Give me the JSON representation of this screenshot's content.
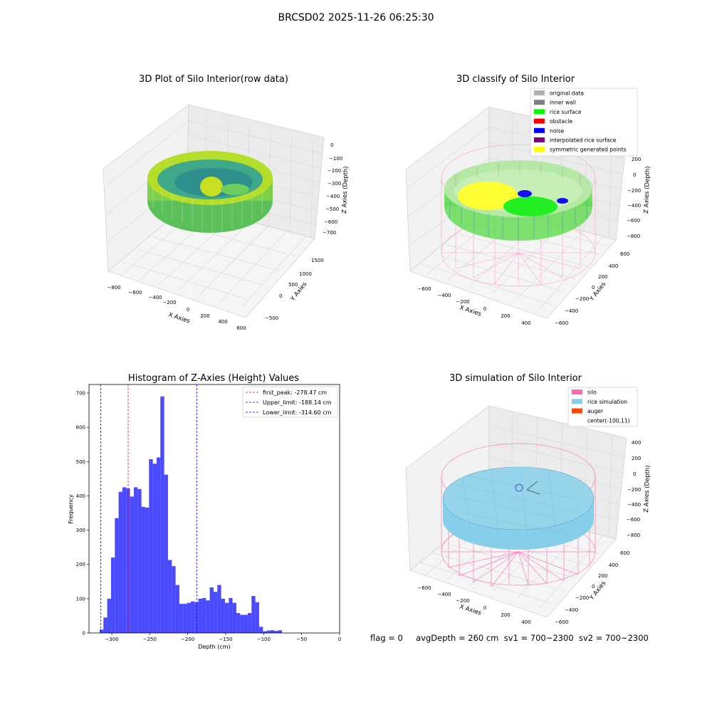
{
  "figure": {
    "suptitle": "BRCSD02 2025-11-26 06:25:30",
    "status_text": "flag = 0     avgDepth = 260 cm  sv1 = 700~2300  sv2 = 700~2300"
  },
  "panel_raw": {
    "title": "3D Plot of Silo Interior(row data)",
    "xlabel": "X Axies",
    "ylabel": "Y Axies",
    "zlabel": "Z Axies (Depth)",
    "xticks": [
      "−800",
      "−600",
      "−400",
      "−200",
      "0",
      "200",
      "400",
      "600"
    ],
    "yticks": [
      "−500",
      "0",
      "500",
      "1000",
      "1500"
    ],
    "zticks": [
      "0",
      "−100",
      "−200",
      "−300",
      "−400",
      "−500",
      "−600",
      "−700"
    ]
  },
  "panel_classify": {
    "title": "3D classify of Silo Interior",
    "xlabel": "X Axies",
    "ylabel": "Y Axies",
    "zlabel": "Z Axies (Depth)",
    "xticks": [
      "−600",
      "−400",
      "−200",
      "0",
      "200",
      "400"
    ],
    "yticks": [
      "−600",
      "−400",
      "−200",
      "0",
      "200",
      "400",
      "600"
    ],
    "zticks": [
      "200",
      "0",
      "−200",
      "−400",
      "−600",
      "−800"
    ],
    "legend": [
      {
        "label": "original data",
        "color": "#b0b0b0"
      },
      {
        "label": "inner wall",
        "color": "#808080"
      },
      {
        "label": "rice surface",
        "color": "#00ff00"
      },
      {
        "label": "obstacle",
        "color": "#ff0000"
      },
      {
        "label": "noise",
        "color": "#0000ff"
      },
      {
        "label": "interpolated rice surface",
        "color": "#800080"
      },
      {
        "label": "symmetric generated points",
        "color": "#ffff00"
      }
    ]
  },
  "panel_simulation": {
    "title": "3D simulation of Silo Interior",
    "xlabel": "X Axies",
    "ylabel": "Y Axies",
    "zlabel": "Z Axies (Depth)",
    "xticks": [
      "−600",
      "−400",
      "−200",
      "0",
      "200",
      "400"
    ],
    "yticks": [
      "−600",
      "−400",
      "−200",
      "0",
      "200",
      "400",
      "600"
    ],
    "zticks": [
      "400",
      "200",
      "0",
      "−200",
      "−400",
      "−600",
      "−800"
    ],
    "legend": [
      {
        "label": "silo",
        "color": "#ff69b4"
      },
      {
        "label": "rice simulation",
        "color": "#87ceeb"
      },
      {
        "label": "auger",
        "color": "#ff4500"
      },
      {
        "label": "center(-100,11)",
        "color": ""
      }
    ]
  },
  "chart_data": {
    "type": "bar",
    "title": "Histogram of Z-Axies (Height) Values",
    "xlabel": "Depth (cm)",
    "ylabel": "Frequency",
    "xlim": [
      -330,
      0
    ],
    "ylim": [
      0,
      725
    ],
    "xticks": [
      -300,
      -250,
      -200,
      -150,
      -100,
      -50,
      0
    ],
    "yticks": [
      0,
      100,
      200,
      300,
      400,
      500,
      600,
      700
    ],
    "bin_start": -316,
    "bin_width": 5,
    "values": [
      10,
      45,
      100,
      220,
      335,
      412,
      425,
      422,
      398,
      425,
      420,
      368,
      366,
      507,
      494,
      512,
      690,
      462,
      213,
      195,
      140,
      85,
      85,
      88,
      92,
      90,
      100,
      102,
      95,
      133,
      120,
      140,
      100,
      88,
      102,
      88,
      58,
      53,
      53,
      58,
      108,
      90,
      18,
      5,
      7,
      8,
      6,
      8
    ],
    "color": "#4a4aff",
    "vlines": [
      {
        "label": "first_peak: -278.47 cm",
        "x": -278.47,
        "color": "#ff0000"
      },
      {
        "label": "Upper_limit: -188.14 cm",
        "x": -188.14,
        "color": "#0000ff"
      },
      {
        "label": "Lower_limit: -314.60 cm",
        "x": -314.6,
        "color": "#0000ff"
      }
    ]
  }
}
